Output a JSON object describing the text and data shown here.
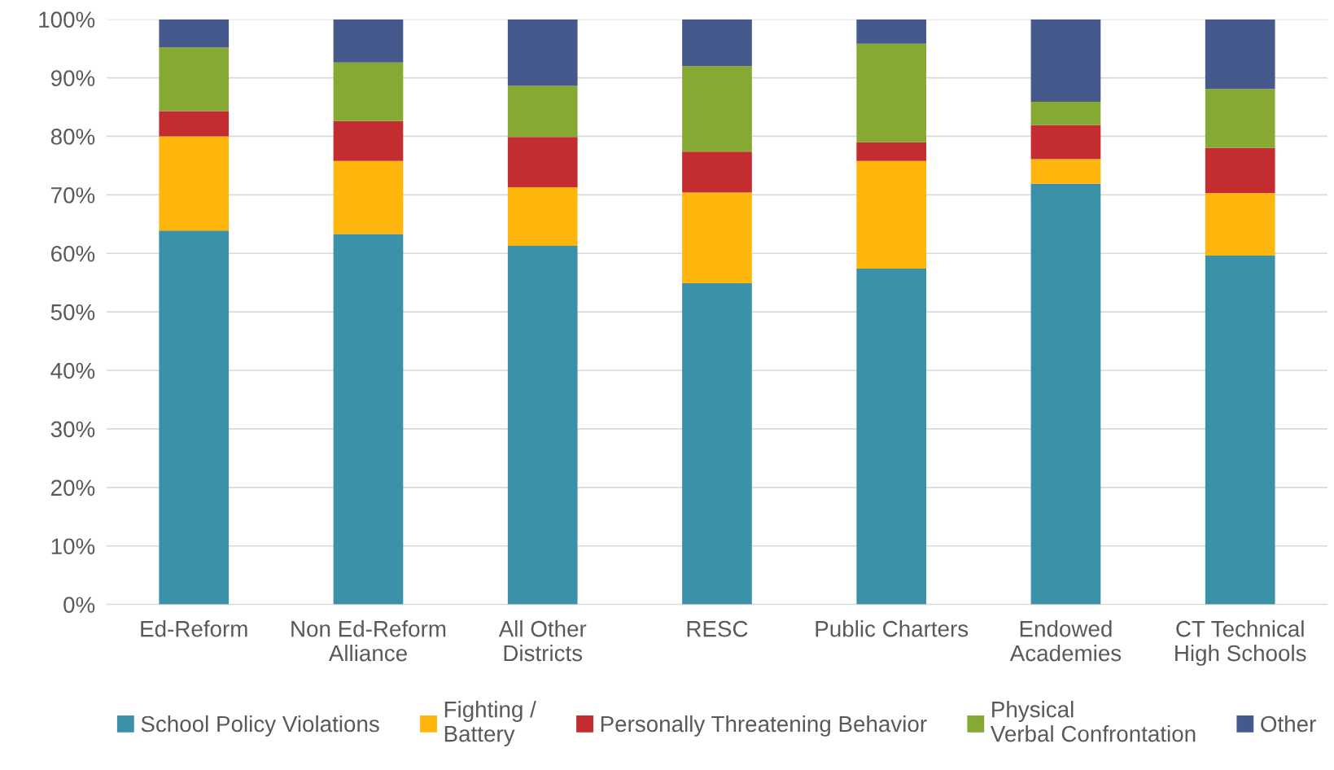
{
  "chart_data": {
    "type": "bar",
    "stacked": true,
    "categories": [
      "Ed-Reform",
      "Non Ed-Reform\nAlliance",
      "All Other\nDistricts",
      "RESC",
      "Public Charters",
      "Endowed\nAcademies",
      "CT Technical\nHigh Schools"
    ],
    "series": [
      {
        "name": "School Policy Violations",
        "color": "#3a91a8",
        "values": [
          63.9,
          63.3,
          61.3,
          54.9,
          57.4,
          71.9,
          59.6
        ]
      },
      {
        "name": "Fighting /\nBattery",
        "color": "#ffb60c",
        "values": [
          16.1,
          12.5,
          10.0,
          15.5,
          18.4,
          4.2,
          10.7
        ]
      },
      {
        "name": "Personally Threatening Behavior",
        "color": "#c42d2f",
        "values": [
          4.3,
          6.8,
          8.6,
          7.0,
          3.2,
          5.8,
          7.7
        ]
      },
      {
        "name": "Physical\nVerbal Confrontation",
        "color": "#86a934",
        "values": [
          10.9,
          10.0,
          8.7,
          14.6,
          16.8,
          4.0,
          10.1
        ]
      },
      {
        "name": "Other",
        "color": "#46598c",
        "values": [
          4.8,
          7.4,
          11.4,
          8.0,
          4.2,
          14.1,
          11.9
        ]
      }
    ],
    "ylim": [
      0,
      100
    ],
    "yticks": [
      {
        "value": 0,
        "label": "0%"
      },
      {
        "value": 10,
        "label": "10%"
      },
      {
        "value": 20,
        "label": "20%"
      },
      {
        "value": 30,
        "label": "30%"
      },
      {
        "value": 40,
        "label": "40%"
      },
      {
        "value": 50,
        "label": "50%"
      },
      {
        "value": 60,
        "label": "60%"
      },
      {
        "value": 70,
        "label": "70%"
      },
      {
        "value": 80,
        "label": "80%"
      },
      {
        "value": 90,
        "label": "90%"
      },
      {
        "value": 100,
        "label": "100%"
      }
    ],
    "grid": "y",
    "legend": "bottom"
  }
}
